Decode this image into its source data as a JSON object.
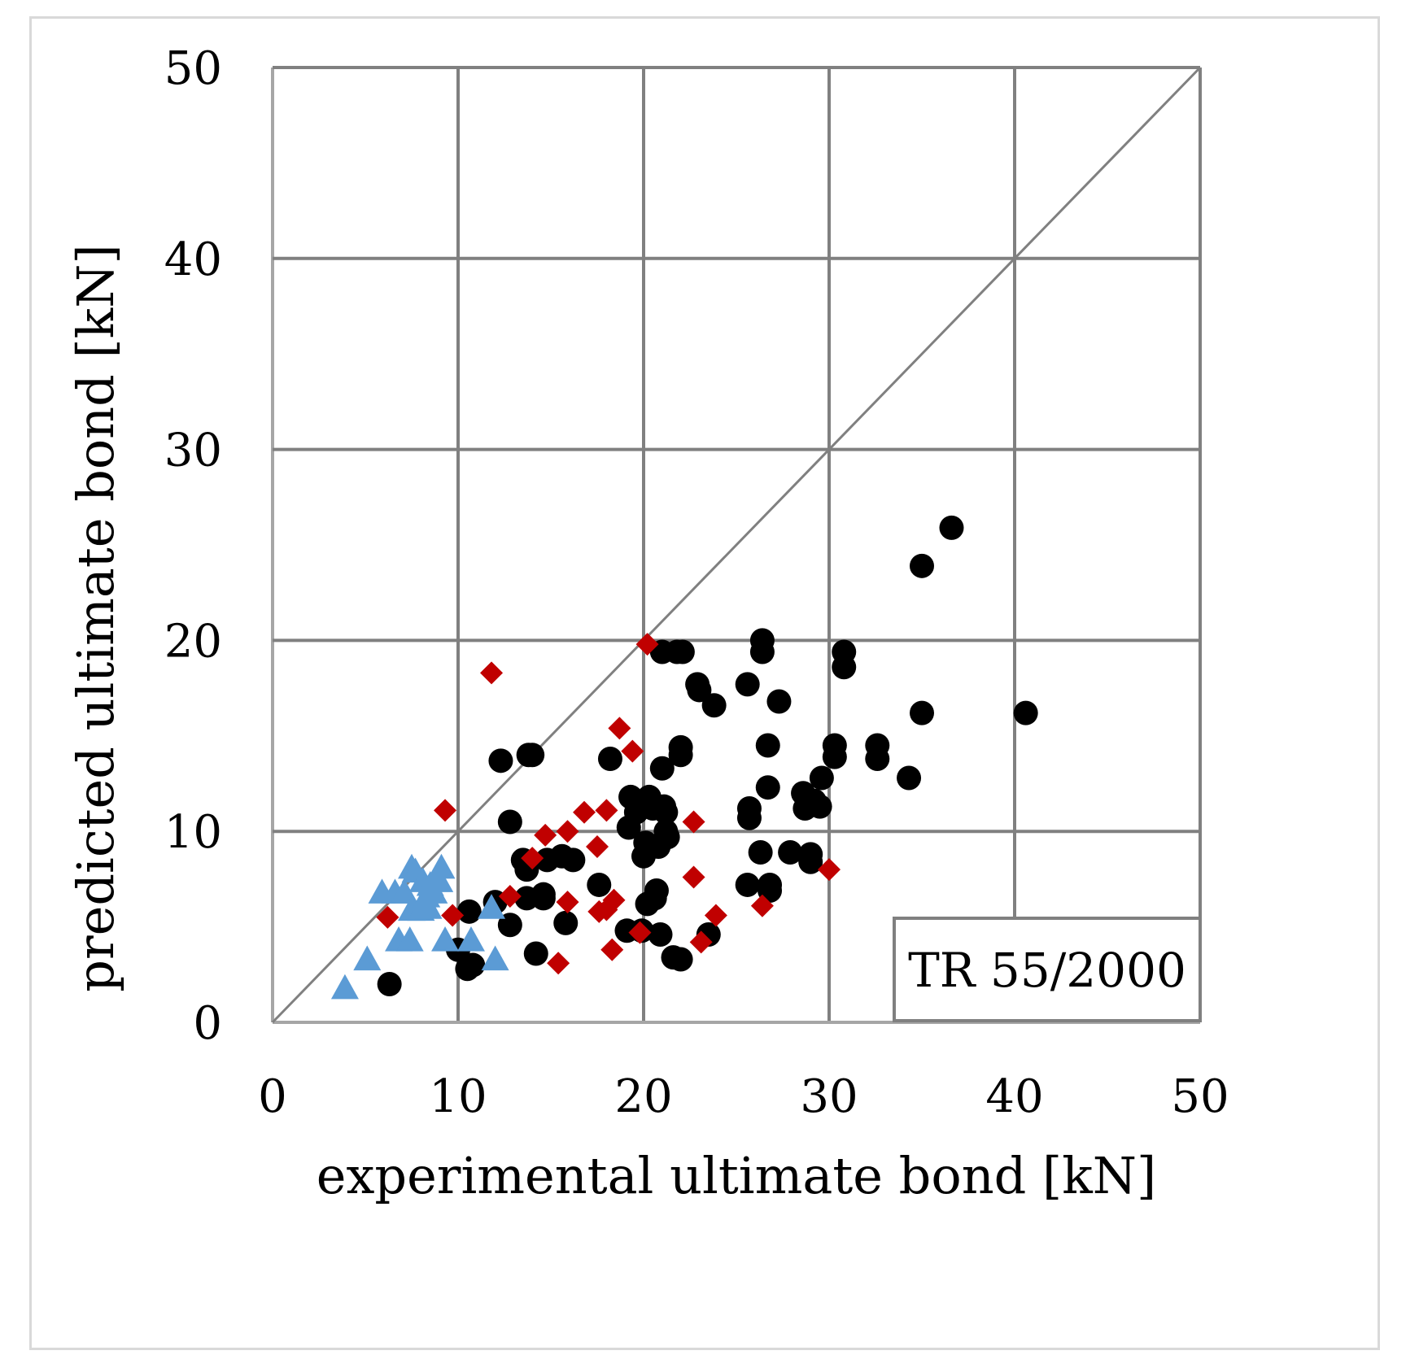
{
  "chart_data": {
    "type": "scatter",
    "title": "",
    "xlabel": "experimental ultimate bond [kN]",
    "ylabel": "predicted ultimate bond [kN]",
    "xlim": [
      0,
      50
    ],
    "ylim": [
      0,
      50
    ],
    "xticks": [
      "0",
      "10",
      "20",
      "30",
      "40",
      "50"
    ],
    "yticks": [
      "0",
      "10",
      "20",
      "30",
      "40",
      "50"
    ],
    "grid": true,
    "reference_line": {
      "type": "y=x",
      "color": "#808080"
    },
    "annotation": "TR 55/2000",
    "series": [
      {
        "name": "circles",
        "marker": "circle",
        "color": "#000000",
        "points": [
          [
            6.3,
            2.0
          ],
          [
            10.0,
            3.8
          ],
          [
            10.5,
            2.8
          ],
          [
            10.8,
            3.0
          ],
          [
            10.6,
            5.8
          ],
          [
            12.0,
            6.3
          ],
          [
            12.3,
            13.7
          ],
          [
            12.8,
            5.1
          ],
          [
            12.8,
            10.5
          ],
          [
            13.5,
            8.5
          ],
          [
            13.7,
            8.0
          ],
          [
            13.7,
            6.5
          ],
          [
            13.8,
            14.0
          ],
          [
            14.0,
            14.0
          ],
          [
            14.2,
            3.6
          ],
          [
            14.6,
            6.5
          ],
          [
            14.6,
            6.7
          ],
          [
            14.8,
            8.5
          ],
          [
            15.6,
            8.7
          ],
          [
            15.8,
            5.2
          ],
          [
            16.2,
            8.5
          ],
          [
            17.6,
            7.2
          ],
          [
            18.2,
            13.8
          ],
          [
            19.1,
            4.8
          ],
          [
            19.2,
            10.2
          ],
          [
            19.3,
            11.8
          ],
          [
            19.6,
            11.0
          ],
          [
            19.9,
            4.8
          ],
          [
            20.0,
            8.7
          ],
          [
            20.1,
            9.4
          ],
          [
            20.2,
            6.2
          ],
          [
            20.3,
            11.8
          ],
          [
            20.5,
            11.2
          ],
          [
            20.6,
            6.5
          ],
          [
            20.7,
            6.9
          ],
          [
            20.8,
            9.2
          ],
          [
            20.9,
            4.6
          ],
          [
            21.0,
            19.4
          ],
          [
            21.0,
            13.3
          ],
          [
            21.1,
            11.3
          ],
          [
            21.2,
            11.0
          ],
          [
            21.2,
            10.0
          ],
          [
            21.3,
            9.7
          ],
          [
            21.6,
            3.4
          ],
          [
            21.8,
            19.4
          ],
          [
            22.0,
            14.4
          ],
          [
            22.0,
            14.0
          ],
          [
            22.0,
            3.3
          ],
          [
            22.1,
            19.4
          ],
          [
            22.9,
            17.7
          ],
          [
            23.0,
            17.4
          ],
          [
            23.5,
            4.6
          ],
          [
            23.8,
            16.6
          ],
          [
            25.6,
            17.7
          ],
          [
            25.6,
            7.2
          ],
          [
            25.7,
            11.2
          ],
          [
            25.7,
            10.7
          ],
          [
            26.3,
            8.9
          ],
          [
            26.4,
            20.0
          ],
          [
            26.4,
            19.4
          ],
          [
            26.7,
            14.5
          ],
          [
            26.7,
            12.3
          ],
          [
            26.8,
            7.2
          ],
          [
            26.8,
            6.9
          ],
          [
            27.3,
            16.8
          ],
          [
            27.9,
            8.9
          ],
          [
            28.6,
            12.0
          ],
          [
            28.7,
            11.2
          ],
          [
            29.0,
            8.8
          ],
          [
            29.0,
            8.4
          ],
          [
            29.2,
            11.6
          ],
          [
            29.5,
            11.3
          ],
          [
            29.6,
            12.8
          ],
          [
            30.3,
            14.5
          ],
          [
            30.3,
            13.9
          ],
          [
            30.8,
            19.4
          ],
          [
            30.8,
            18.6
          ],
          [
            32.6,
            14.5
          ],
          [
            32.6,
            13.8
          ],
          [
            34.3,
            12.8
          ],
          [
            35.0,
            23.9
          ],
          [
            35.0,
            16.2
          ],
          [
            36.6,
            25.9
          ],
          [
            40.6,
            16.2
          ]
        ]
      },
      {
        "name": "diamonds",
        "marker": "diamond",
        "color": "#c00000",
        "points": [
          [
            6.2,
            5.5
          ],
          [
            9.3,
            11.1
          ],
          [
            9.7,
            5.6
          ],
          [
            11.8,
            18.3
          ],
          [
            12.8,
            6.6
          ],
          [
            14.0,
            8.6
          ],
          [
            14.7,
            9.8
          ],
          [
            15.4,
            3.1
          ],
          [
            15.9,
            10.0
          ],
          [
            15.9,
            6.3
          ],
          [
            16.8,
            11.0
          ],
          [
            17.5,
            9.2
          ],
          [
            17.6,
            5.8
          ],
          [
            18.0,
            11.1
          ],
          [
            18.0,
            5.9
          ],
          [
            18.3,
            3.8
          ],
          [
            18.4,
            6.4
          ],
          [
            18.7,
            15.4
          ],
          [
            19.4,
            14.2
          ],
          [
            19.8,
            4.7
          ],
          [
            20.2,
            19.8
          ],
          [
            22.7,
            10.5
          ],
          [
            22.7,
            7.6
          ],
          [
            23.1,
            4.2
          ],
          [
            23.9,
            5.6
          ],
          [
            26.4,
            6.1
          ],
          [
            30.0,
            8.0
          ]
        ]
      },
      {
        "name": "triangles",
        "marker": "triangle",
        "color": "#5b9bd5",
        "points": [
          [
            3.9,
            1.8
          ],
          [
            5.1,
            3.3
          ],
          [
            5.9,
            6.8
          ],
          [
            6.6,
            6.8
          ],
          [
            6.8,
            4.3
          ],
          [
            7.1,
            6.8
          ],
          [
            7.4,
            4.3
          ],
          [
            7.5,
            8.1
          ],
          [
            7.5,
            5.9
          ],
          [
            7.7,
            7.9
          ],
          [
            8.0,
            5.9
          ],
          [
            8.1,
            7.4
          ],
          [
            8.3,
            6.6
          ],
          [
            8.4,
            6.0
          ],
          [
            8.5,
            7.2
          ],
          [
            8.7,
            6.8
          ],
          [
            9.0,
            7.4
          ],
          [
            9.1,
            8.1
          ],
          [
            9.3,
            4.3
          ],
          [
            10.7,
            4.3
          ],
          [
            11.8,
            6.0
          ],
          [
            12.0,
            3.3
          ]
        ]
      }
    ]
  }
}
